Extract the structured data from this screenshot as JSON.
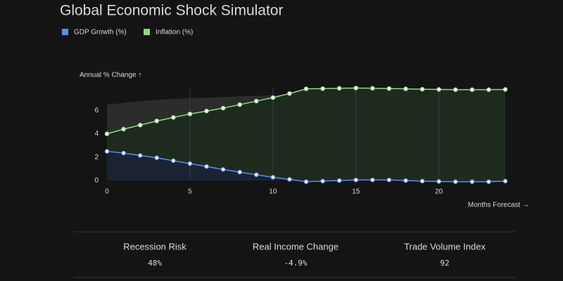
{
  "chart_data": {
    "type": "line",
    "title": "Global Economic Shock Simulator",
    "x_label": "Months Forecast →",
    "y_label": "Annual % Change ↑",
    "x": [
      0,
      1,
      2,
      3,
      4,
      5,
      6,
      7,
      8,
      9,
      10,
      11,
      12,
      13,
      14,
      15,
      16,
      17,
      18,
      19,
      20,
      21,
      22,
      23,
      24
    ],
    "series": [
      {
        "name": "GDP Growth (%)",
        "color": "#5b8def",
        "values": [
          2.5,
          2.35,
          2.15,
          1.95,
          1.7,
          1.45,
          1.2,
          0.95,
          0.72,
          0.5,
          0.28,
          0.1,
          -0.1,
          -0.05,
          0,
          0.05,
          0.05,
          0.05,
          0,
          -0.05,
          -0.08,
          -0.1,
          -0.1,
          -0.1,
          -0.05
        ]
      },
      {
        "name": "Inflation (%)",
        "color": "#8fd67f",
        "values": [
          4.0,
          4.4,
          4.75,
          5.1,
          5.4,
          5.7,
          5.95,
          6.2,
          6.5,
          6.8,
          7.1,
          7.45,
          7.85,
          7.87,
          7.9,
          7.92,
          7.9,
          7.88,
          7.85,
          7.82,
          7.8,
          7.78,
          7.78,
          7.78,
          7.8
        ]
      }
    ],
    "band": {
      "color": "#2a2d2a",
      "values": [
        6.5,
        6.65,
        6.8,
        6.9,
        7.0,
        7.05,
        7.1,
        7.15,
        7.2,
        7.25,
        7.3,
        7.35,
        null,
        null,
        null,
        null,
        null,
        null,
        null,
        null,
        null,
        null,
        null,
        null,
        null
      ]
    },
    "xlim": [
      0,
      24
    ],
    "ylim": [
      0,
      8
    ],
    "xticks": [
      0,
      5,
      10,
      15,
      20
    ],
    "yticks": [
      0,
      2,
      4,
      6
    ],
    "grid": true
  },
  "stats": [
    {
      "label": "Recession Risk",
      "value": "48%"
    },
    {
      "label": "Real Income Change",
      "value": "-4.9%"
    },
    {
      "label": "Trade Volume Index",
      "value": "92"
    }
  ]
}
